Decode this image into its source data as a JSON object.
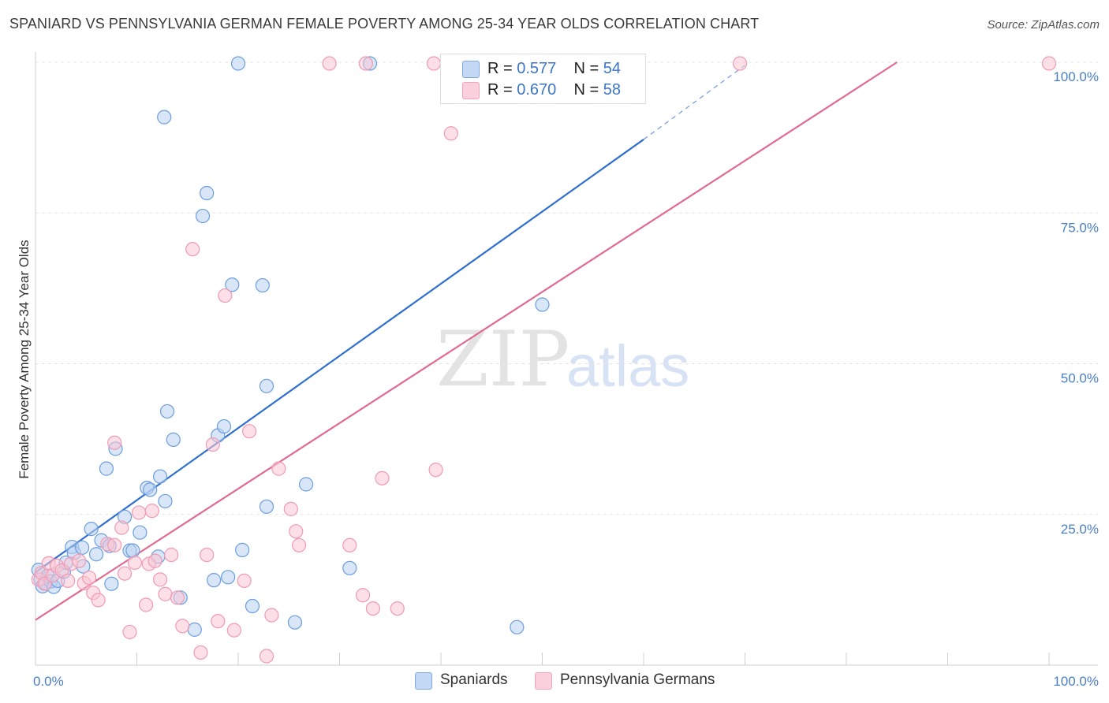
{
  "title": "SPANIARD VS PENNSYLVANIA GERMAN FEMALE POVERTY AMONG 25-34 YEAR OLDS CORRELATION CHART",
  "source": "Source: ZipAtlas.com",
  "watermark": {
    "zip": "ZIP",
    "atlas": "atlas"
  },
  "legend": {
    "rows": [
      {
        "r_label": "R =",
        "r": "0.577",
        "n_label": "N =",
        "n": "54",
        "color": "#aac8f0"
      },
      {
        "r_label": "R =",
        "r": "0.670",
        "n_label": "N =",
        "n": "58",
        "color": "#f7b8cb"
      }
    ]
  },
  "bottom_legend": [
    "Spaniards",
    "Pennsylvania Germans"
  ],
  "colors": {
    "blue_fill": "#b9d2f2",
    "blue_stroke": "#6c9ede",
    "blue_line": "#2f6fd0",
    "pink_fill": "#f9c5d4",
    "pink_stroke": "#ef9bb5",
    "pink_line": "#e06a92",
    "tick_text": "#4a7fc7"
  },
  "chart_data": {
    "type": "scatter",
    "title": "SPANIARD VS PENNSYLVANIA GERMAN FEMALE POVERTY AMONG 25-34 YEAR OLDS CORRELATION CHART",
    "xlabel": "",
    "ylabel": "Female Poverty Among 25-34 Year Olds",
    "xlim": [
      0,
      100
    ],
    "ylim": [
      0,
      100
    ],
    "y_ticks": [
      "25.0%",
      "50.0%",
      "75.0%",
      "100.0%"
    ],
    "x_tick_labels": [
      "0.0%",
      "100.0%"
    ],
    "grid": true,
    "legend_position": "top-center",
    "series": [
      {
        "name": "Spaniards",
        "r": 0.577,
        "n": 54,
        "trend": {
          "x0": 0,
          "y0": 15.4,
          "x1": 60,
          "y1": 87.2,
          "dashed_to_x": 70,
          "dashed_to_y": 99.5
        },
        "points": [
          [
            0.3,
            15.8
          ],
          [
            0.5,
            14.2
          ],
          [
            0.7,
            13.1
          ],
          [
            1.0,
            13.6
          ],
          [
            1.2,
            14.8
          ],
          [
            1.5,
            13.9
          ],
          [
            1.8,
            13.0
          ],
          [
            2.2,
            14.0
          ],
          [
            2.8,
            15.5
          ],
          [
            3.0,
            17.0
          ],
          [
            3.6,
            19.6
          ],
          [
            3.8,
            18.6
          ],
          [
            4.6,
            19.5
          ],
          [
            4.7,
            16.4
          ],
          [
            5.5,
            22.6
          ],
          [
            6.0,
            18.4
          ],
          [
            6.5,
            20.7
          ],
          [
            7.3,
            19.8
          ],
          [
            7.5,
            13.5
          ],
          [
            7.9,
            35.9
          ],
          [
            7.0,
            32.6
          ],
          [
            8.8,
            24.6
          ],
          [
            9.3,
            19.0
          ],
          [
            9.6,
            19.0
          ],
          [
            10.3,
            22.0
          ],
          [
            11.0,
            29.4
          ],
          [
            11.3,
            29.1
          ],
          [
            12.1,
            18.0
          ],
          [
            12.3,
            31.3
          ],
          [
            12.8,
            27.2
          ],
          [
            13.0,
            42.1
          ],
          [
            13.6,
            37.4
          ],
          [
            14.3,
            11.2
          ],
          [
            15.7,
            5.9
          ],
          [
            16.5,
            74.5
          ],
          [
            16.9,
            78.3
          ],
          [
            17.6,
            14.1
          ],
          [
            18.0,
            38.1
          ],
          [
            18.6,
            39.6
          ],
          [
            19.0,
            14.6
          ],
          [
            20.4,
            19.1
          ],
          [
            21.4,
            9.8
          ],
          [
            22.4,
            63.0
          ],
          [
            22.8,
            46.3
          ],
          [
            22.8,
            26.3
          ],
          [
            25.6,
            7.1
          ],
          [
            26.7,
            30.0
          ],
          [
            31.0,
            16.1
          ],
          [
            19.4,
            63.1
          ],
          [
            12.7,
            90.9
          ],
          [
            20.0,
            99.8
          ],
          [
            33.0,
            99.8
          ],
          [
            47.5,
            6.3
          ],
          [
            50.0,
            59.8
          ]
        ]
      },
      {
        "name": "Pennsylvania Germans",
        "r": 0.67,
        "n": 58,
        "trend": {
          "x0": 0,
          "y0": 7.5,
          "x1": 85,
          "y1": 100
        },
        "points": [
          [
            0.3,
            14.2
          ],
          [
            0.6,
            15.3
          ],
          [
            0.9,
            13.5
          ],
          [
            1.3,
            16.9
          ],
          [
            1.7,
            14.9
          ],
          [
            2.1,
            16.5
          ],
          [
            2.6,
            15.7
          ],
          [
            3.2,
            14.0
          ],
          [
            3.5,
            16.8
          ],
          [
            4.3,
            17.3
          ],
          [
            4.8,
            13.6
          ],
          [
            5.3,
            14.5
          ],
          [
            5.7,
            12.0
          ],
          [
            6.2,
            10.8
          ],
          [
            7.1,
            20.1
          ],
          [
            7.8,
            19.9
          ],
          [
            7.8,
            36.9
          ],
          [
            8.5,
            22.8
          ],
          [
            8.8,
            15.2
          ],
          [
            9.3,
            5.5
          ],
          [
            9.8,
            17.0
          ],
          [
            10.2,
            25.3
          ],
          [
            10.9,
            10.0
          ],
          [
            11.2,
            16.8
          ],
          [
            11.5,
            25.6
          ],
          [
            11.8,
            17.3
          ],
          [
            12.3,
            14.2
          ],
          [
            12.8,
            11.8
          ],
          [
            13.4,
            18.3
          ],
          [
            14.0,
            11.2
          ],
          [
            14.5,
            6.5
          ],
          [
            15.5,
            69.0
          ],
          [
            16.3,
            2.1
          ],
          [
            16.9,
            18.3
          ],
          [
            17.5,
            36.6
          ],
          [
            18.0,
            7.3
          ],
          [
            18.7,
            61.3
          ],
          [
            19.6,
            5.8
          ],
          [
            20.6,
            14.0
          ],
          [
            21.1,
            38.8
          ],
          [
            22.8,
            1.5
          ],
          [
            23.3,
            8.3
          ],
          [
            24.0,
            32.6
          ],
          [
            25.2,
            25.9
          ],
          [
            25.7,
            22.2
          ],
          [
            26.0,
            19.9
          ],
          [
            31.0,
            19.9
          ],
          [
            32.3,
            11.6
          ],
          [
            33.3,
            9.4
          ],
          [
            34.2,
            31.0
          ],
          [
            35.7,
            9.4
          ],
          [
            39.5,
            32.4
          ],
          [
            41.0,
            88.2
          ],
          [
            29.0,
            99.8
          ],
          [
            32.6,
            99.8
          ],
          [
            39.3,
            99.8
          ],
          [
            69.5,
            99.8
          ],
          [
            100.0,
            99.8
          ]
        ]
      }
    ]
  }
}
